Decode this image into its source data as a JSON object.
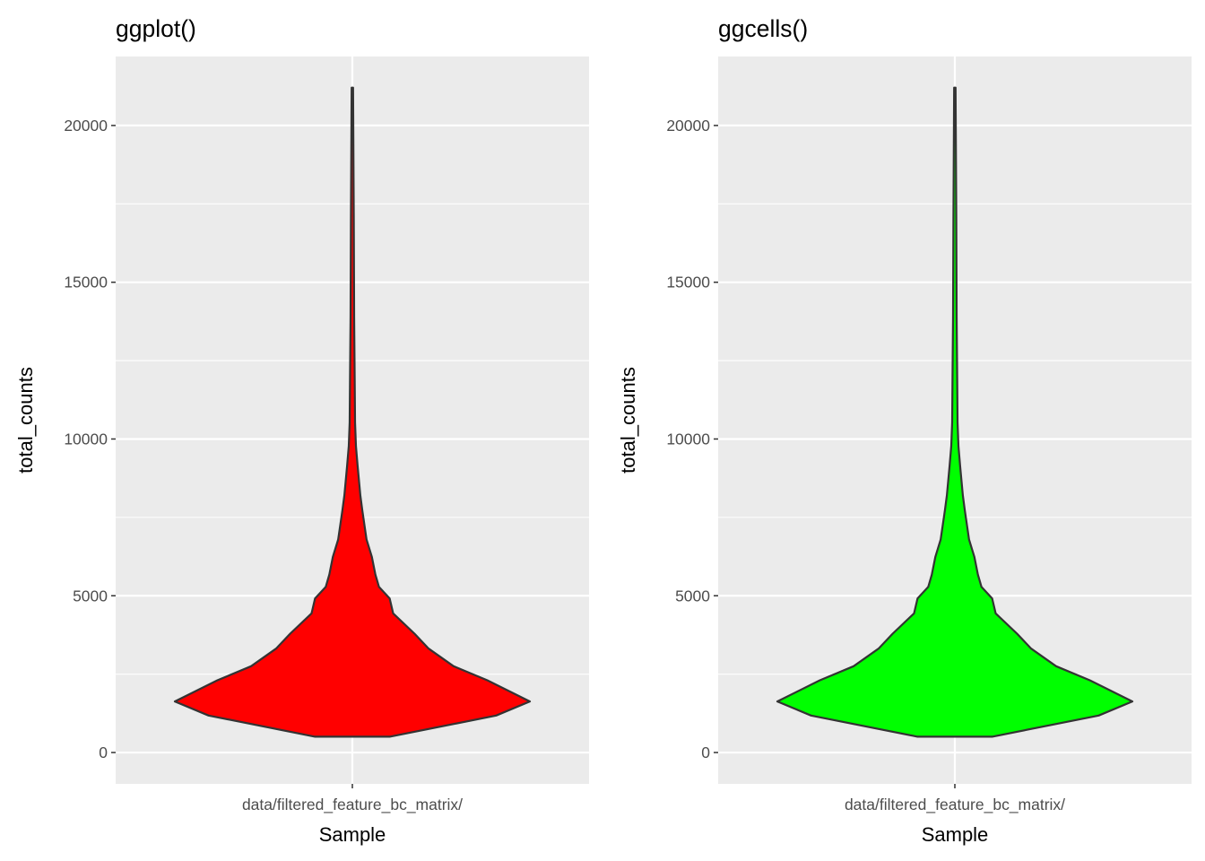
{
  "chart_data": [
    {
      "type": "violin",
      "title": "ggplot()",
      "xlabel": "Sample",
      "ylabel": "total_counts",
      "categories": [
        "data/filtered_feature_bc_matrix/"
      ],
      "fill": "#FF0000",
      "outline": "#333333",
      "ylim": [
        -1000,
        22200
      ],
      "yticks": [
        0,
        5000,
        10000,
        15000,
        20000
      ],
      "ytick_labels": [
        "0",
        "5000",
        "10000",
        "15000",
        "20000"
      ],
      "grid": true,
      "violin_profile": [
        [
          506,
          0.21
        ],
        [
          1180,
          0.81
        ],
        [
          1629,
          1.0
        ],
        [
          2303,
          0.76
        ],
        [
          2753,
          0.57
        ],
        [
          3315,
          0.43
        ],
        [
          3792,
          0.35
        ],
        [
          4438,
          0.23
        ],
        [
          4916,
          0.21
        ],
        [
          5281,
          0.15
        ],
        [
          5674,
          0.13
        ],
        [
          6236,
          0.11
        ],
        [
          6798,
          0.08
        ],
        [
          7725,
          0.056
        ],
        [
          8202,
          0.045
        ],
        [
          9129,
          0.03
        ],
        [
          9775,
          0.02
        ],
        [
          10534,
          0.015
        ],
        [
          11938,
          0.013
        ],
        [
          13904,
          0.01
        ],
        [
          16994,
          0.008
        ],
        [
          21208,
          0.004
        ]
      ]
    },
    {
      "type": "violin",
      "title": "ggcells()",
      "xlabel": "Sample",
      "ylabel": "total_counts",
      "categories": [
        "data/filtered_feature_bc_matrix/"
      ],
      "fill": "#00FF00",
      "outline": "#333333",
      "ylim": [
        -1000,
        22200
      ],
      "yticks": [
        0,
        5000,
        10000,
        15000,
        20000
      ],
      "ytick_labels": [
        "0",
        "5000",
        "10000",
        "15000",
        "20000"
      ],
      "grid": true,
      "violin_profile": [
        [
          506,
          0.21
        ],
        [
          1180,
          0.81
        ],
        [
          1629,
          1.0
        ],
        [
          2303,
          0.76
        ],
        [
          2753,
          0.57
        ],
        [
          3315,
          0.43
        ],
        [
          3792,
          0.35
        ],
        [
          4438,
          0.23
        ],
        [
          4916,
          0.21
        ],
        [
          5281,
          0.15
        ],
        [
          5674,
          0.13
        ],
        [
          6236,
          0.11
        ],
        [
          6798,
          0.08
        ],
        [
          7725,
          0.056
        ],
        [
          8202,
          0.045
        ],
        [
          9129,
          0.03
        ],
        [
          9775,
          0.02
        ],
        [
          10534,
          0.015
        ],
        [
          11938,
          0.013
        ],
        [
          13904,
          0.01
        ],
        [
          16994,
          0.008
        ],
        [
          21208,
          0.004
        ]
      ]
    }
  ]
}
